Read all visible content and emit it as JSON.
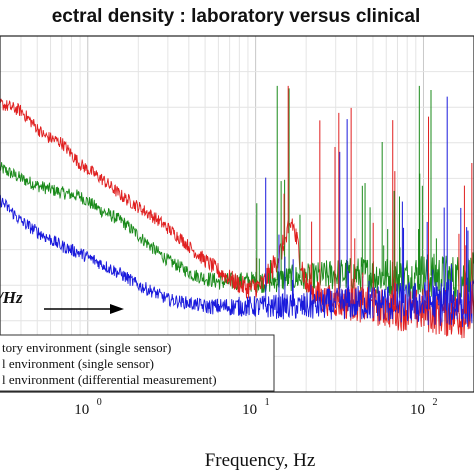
{
  "chart_data": {
    "type": "line",
    "title": "ectral density : laboratory versus clinical",
    "xlabel": "Frequency, Hz",
    "ylabel": "",
    "x_scale": "log",
    "xlim": [
      0.3,
      200
    ],
    "ylim": [
      0,
      10
    ],
    "grid": true,
    "legend_placement": "bottom-left",
    "x_ticks": [
      {
        "base": "10",
        "exp": "0",
        "value": 1
      },
      {
        "base": "10",
        "exp": "1",
        "value": 10
      },
      {
        "base": "10",
        "exp": "2",
        "value": 100
      }
    ],
    "annotation": {
      "text": "/Hz",
      "x": 0.3,
      "y": 5.2
    },
    "series": [
      {
        "name": "tory environment (single sensor)",
        "color": "#e02020",
        "x": [
          0.3,
          0.4,
          0.55,
          0.7,
          0.9,
          1.2,
          1.6,
          2.0,
          2.5,
          3.0,
          3.6,
          4.2,
          5.0,
          6.0,
          7.5,
          9.0,
          11,
          13,
          15,
          16.5,
          18,
          20,
          25,
          35,
          50,
          70,
          100,
          140,
          200
        ],
        "y": [
          8.1,
          7.9,
          7.2,
          7.0,
          6.4,
          6.0,
          5.5,
          5.2,
          4.9,
          4.6,
          4.3,
          4.0,
          3.7,
          3.4,
          3.1,
          2.9,
          3.0,
          3.6,
          4.2,
          4.8,
          4.0,
          3.0,
          2.6,
          2.5,
          2.4,
          2.3,
          2.3,
          2.2,
          2.2
        ]
      },
      {
        "name": "l environment (single sensor)",
        "color": "#1a8a1a",
        "x": [
          0.3,
          0.4,
          0.5,
          0.7,
          0.9,
          1.2,
          1.6,
          2.0,
          2.5,
          3.0,
          3.6,
          4.2,
          5.0,
          6.0,
          7.5,
          9.0,
          12,
          16,
          20,
          30,
          50,
          70,
          100,
          140,
          200
        ],
        "y": [
          6.3,
          6.0,
          5.8,
          5.6,
          5.5,
          5.1,
          4.8,
          4.4,
          4.0,
          3.7,
          3.5,
          3.3,
          3.2,
          3.1,
          3.1,
          3.1,
          3.1,
          3.2,
          3.2,
          3.3,
          3.3,
          3.2,
          3.3,
          3.2,
          3.2
        ]
      },
      {
        "name": "l environment (differential measurement)",
        "color": "#1a1adc",
        "x": [
          0.3,
          0.4,
          0.5,
          0.7,
          0.9,
          1.2,
          1.6,
          2.0,
          2.5,
          3.0,
          4.0,
          5.0,
          7.0,
          10,
          15,
          20,
          30,
          50,
          70,
          100,
          140,
          200
        ],
        "y": [
          5.4,
          4.8,
          4.5,
          4.1,
          3.9,
          3.6,
          3.3,
          3.0,
          2.8,
          2.6,
          2.5,
          2.4,
          2.4,
          2.4,
          2.4,
          2.4,
          2.5,
          2.5,
          2.5,
          2.5,
          2.5,
          2.5
        ]
      }
    ]
  }
}
